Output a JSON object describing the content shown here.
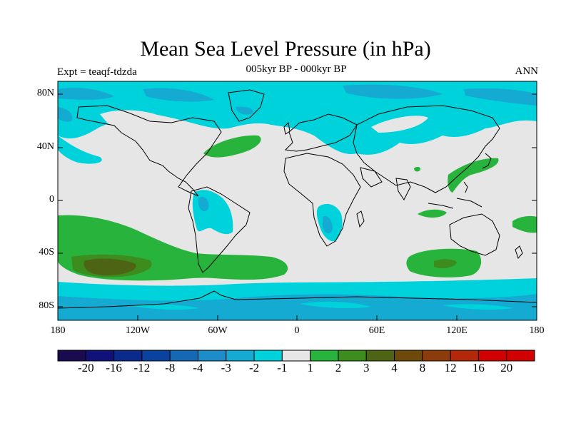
{
  "title": "Mean Sea Level Pressure (in hPa)",
  "subtitle": "005kyr BP - 000kyr BP",
  "experiment": "Expt = teaqf-tdzda",
  "season": "ANN",
  "axes": {
    "y_ticks": [
      "80N",
      "40N",
      "0",
      "40S",
      "80S"
    ],
    "x_ticks": [
      "180",
      "120W",
      "60W",
      "0",
      "60E",
      "120E",
      "180"
    ]
  },
  "colorbar": {
    "labels": [
      "-20",
      "-16",
      "-12",
      "-8",
      "-4",
      "-3",
      "-2",
      "-1",
      "1",
      "2",
      "3",
      "4",
      "8",
      "12",
      "16",
      "20"
    ],
    "colors": [
      "#1a0a50",
      "#10127a",
      "#0a2a8c",
      "#0a42a0",
      "#1468b4",
      "#1e8cc8",
      "#14aad2",
      "#00d2dc",
      "#e6e6e6",
      "#28b43c",
      "#3c8c1e",
      "#4c6414",
      "#6e4a0a",
      "#8c3c0a",
      "#b4280a",
      "#d20000"
    ]
  },
  "palette": {
    "neutral": "#e6e6e6",
    "cyan": "#00d2dc",
    "blue": "#14aad2",
    "deep_blue": "#1e8cc8",
    "green": "#28b43c",
    "dark_green": "#3c8c1e",
    "olive": "#4c6414"
  }
}
